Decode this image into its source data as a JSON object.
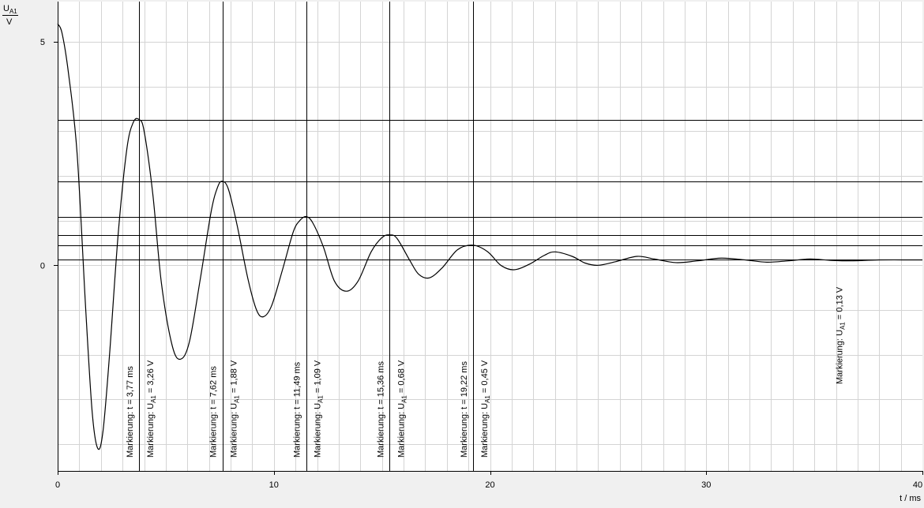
{
  "chart_data": {
    "type": "line",
    "y_axis": {
      "quantity": "U",
      "quantity_sub": "A1",
      "unit": "V",
      "range": [
        -4.6,
        5.9
      ],
      "ticks": [
        0,
        5
      ]
    },
    "x_axis": {
      "label": "t / ms",
      "range": [
        0,
        40
      ],
      "ticks": [
        0,
        10,
        20,
        30,
        40
      ]
    },
    "grid": {
      "x_step": 1,
      "y_step": 1
    },
    "series": [
      {
        "points": [
          [
            0,
            5.4
          ],
          [
            0.2,
            5.2
          ],
          [
            0.5,
            4.3
          ],
          [
            0.9,
            2.5
          ],
          [
            1.3,
            -1.0
          ],
          [
            1.6,
            -3.3
          ],
          [
            1.86,
            -4.1
          ],
          [
            2.1,
            -3.7
          ],
          [
            2.4,
            -2.0
          ],
          [
            2.8,
            0.7
          ],
          [
            3.2,
            2.6
          ],
          [
            3.5,
            3.2
          ],
          [
            3.77,
            3.26
          ],
          [
            4.0,
            3.0
          ],
          [
            4.4,
            1.6
          ],
          [
            4.8,
            -0.4
          ],
          [
            5.3,
            -1.8
          ],
          [
            5.69,
            -2.1
          ],
          [
            6.1,
            -1.7
          ],
          [
            6.6,
            -0.3
          ],
          [
            7.1,
            1.2
          ],
          [
            7.4,
            1.75
          ],
          [
            7.62,
            1.88
          ],
          [
            7.9,
            1.7
          ],
          [
            8.3,
            0.9
          ],
          [
            8.8,
            -0.3
          ],
          [
            9.2,
            -1.0
          ],
          [
            9.52,
            -1.15
          ],
          [
            9.9,
            -0.9
          ],
          [
            10.4,
            -0.1
          ],
          [
            10.9,
            0.75
          ],
          [
            11.2,
            1.0
          ],
          [
            11.49,
            1.09
          ],
          [
            11.8,
            0.95
          ],
          [
            12.3,
            0.4
          ],
          [
            12.8,
            -0.35
          ],
          [
            13.36,
            -0.58
          ],
          [
            13.9,
            -0.35
          ],
          [
            14.5,
            0.3
          ],
          [
            15.0,
            0.62
          ],
          [
            15.36,
            0.68
          ],
          [
            15.7,
            0.6
          ],
          [
            16.3,
            0.1
          ],
          [
            16.7,
            -0.2
          ],
          [
            17.2,
            -0.28
          ],
          [
            17.8,
            -0.05
          ],
          [
            18.5,
            0.35
          ],
          [
            19.22,
            0.45
          ],
          [
            19.9,
            0.3
          ],
          [
            20.5,
            0.0
          ],
          [
            21.1,
            -0.1
          ],
          [
            21.8,
            0.02
          ],
          [
            22.5,
            0.22
          ],
          [
            23.0,
            0.3
          ],
          [
            23.8,
            0.2
          ],
          [
            24.4,
            0.05
          ],
          [
            25.0,
            0.0
          ],
          [
            25.8,
            0.08
          ],
          [
            26.8,
            0.2
          ],
          [
            27.6,
            0.14
          ],
          [
            28.6,
            0.06
          ],
          [
            29.6,
            0.1
          ],
          [
            30.7,
            0.16
          ],
          [
            31.8,
            0.12
          ],
          [
            32.8,
            0.07
          ],
          [
            33.8,
            0.1
          ],
          [
            34.8,
            0.14
          ],
          [
            35.8,
            0.11
          ],
          [
            36.8,
            0.1
          ],
          [
            38,
            0.12
          ],
          [
            40,
            0.12
          ]
        ]
      }
    ],
    "horizontal_lines": [
      3.26,
      1.88,
      1.09,
      0.68,
      0.45,
      0.13
    ],
    "vertical_markers": [
      {
        "x": 3.77,
        "t_label": "Markierung:  t = 3,77 ms",
        "u_prefix": "Markierung:  U",
        "u_sub": "A1",
        "u_suffix": " = 3,26 V"
      },
      {
        "x": 7.62,
        "t_label": "Markierung:  t = 7,62 ms",
        "u_prefix": "Markierung:  U",
        "u_sub": "A1",
        "u_suffix": " = 1,88 V"
      },
      {
        "x": 11.49,
        "t_label": "Markierung:  t = 11,49 ms",
        "u_prefix": "Markierung:  U",
        "u_sub": "A1",
        "u_suffix": " = 1,09 V"
      },
      {
        "x": 15.36,
        "t_label": "Markierung:  t = 15,36 ms",
        "u_prefix": "Markierung:  U",
        "u_sub": "A1",
        "u_suffix": " = 0,68 V"
      },
      {
        "x": 19.22,
        "t_label": "Markierung:  t = 19,22 ms",
        "u_prefix": "Markierung:  U",
        "u_sub": "A1",
        "u_suffix": " = 0,45 V"
      }
    ],
    "extra_annotations": [
      {
        "x": 36.3,
        "u_prefix": "Markierung:  U",
        "u_sub": "A1",
        "u_suffix": " = 0,13 V"
      }
    ],
    "colors": {
      "plot_background": "#ffffff",
      "page_background": "#f0f0f0",
      "grid": "#d4d4d4",
      "line": "#000000",
      "axis": "#000000"
    }
  }
}
